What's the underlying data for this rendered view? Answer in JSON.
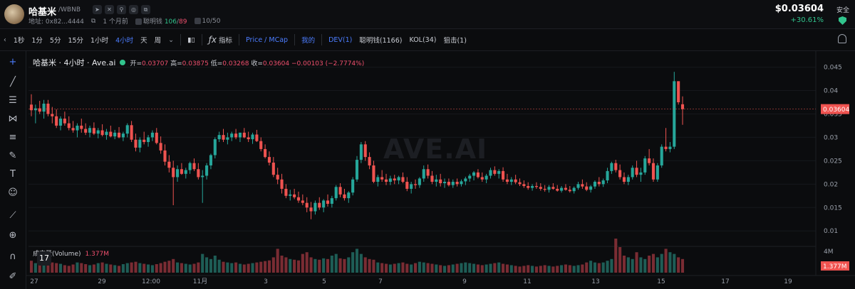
{
  "header": {
    "token_name": "哈基米",
    "pair": "/WBNB",
    "address": "地址: 0x82...4444",
    "age": "1 个月前",
    "smart_money_label": "聪明钱",
    "smart_money_in": "106",
    "smart_money_out": "89",
    "holders": "10/50",
    "price": "$0.03604",
    "change": "+30.61%",
    "safety": "安全"
  },
  "toolbar": {
    "intervals": [
      "1秒",
      "1分",
      "5分",
      "15分",
      "1小时",
      "4小时",
      "天",
      "周"
    ],
    "active_interval": "4小时",
    "indicator_label": "指标",
    "price_mcap": "Price / MCap",
    "mine": "我的",
    "dev": "DEV(1)",
    "smart": "聪明钱(1166)",
    "kol": "KOL(34)",
    "snipe": "狙击(1)"
  },
  "legend": {
    "symbol": "哈基米 · 4小时 · Ave.ai",
    "open_label": "开=",
    "open": "0.03707",
    "high_label": "高=",
    "high": "0.03875",
    "low_label": "低=",
    "low": "0.03268",
    "close_label": "收=",
    "close": "0.03604",
    "change": "−0.00103 (−2.7774%)",
    "volume_label": "成交量(Volume)",
    "volume_value": "1.377M"
  },
  "watermark": "AVE.AI",
  "chart_data": {
    "type": "candlestick",
    "title": "哈基米 · 4小时 · Ave.ai",
    "ylim": [
      0.007,
      0.046
    ],
    "y_ticks": [
      0.045,
      0.04,
      0.035,
      0.03,
      0.025,
      0.02,
      0.015,
      0.01
    ],
    "x_ticks": [
      "27",
      "29",
      "12:00",
      "11月",
      "3",
      "5",
      "7",
      "9",
      "11",
      "13",
      "15",
      "17",
      "19"
    ],
    "current_price": 0.03604,
    "volume_ticks": [
      "4M"
    ],
    "volume_current": "1.377M",
    "up_color": "#26a69a",
    "down_color": "#ef5350",
    "candles": [
      [
        0.037,
        0.0392,
        0.0345,
        0.0358
      ],
      [
        0.0358,
        0.037,
        0.033,
        0.0362
      ],
      [
        0.0362,
        0.0378,
        0.035,
        0.0355
      ],
      [
        0.0355,
        0.038,
        0.034,
        0.0372
      ],
      [
        0.0372,
        0.038,
        0.0345,
        0.035
      ],
      [
        0.035,
        0.0365,
        0.033,
        0.0345
      ],
      [
        0.0345,
        0.036,
        0.032,
        0.0325
      ],
      [
        0.0325,
        0.0345,
        0.0315,
        0.034
      ],
      [
        0.034,
        0.0355,
        0.0325,
        0.033
      ],
      [
        0.033,
        0.0345,
        0.0315,
        0.032
      ],
      [
        0.032,
        0.0335,
        0.031,
        0.0315
      ],
      [
        0.0315,
        0.033,
        0.03,
        0.0325
      ],
      [
        0.0325,
        0.034,
        0.031,
        0.0318
      ],
      [
        0.0318,
        0.033,
        0.0305,
        0.031
      ],
      [
        0.031,
        0.0325,
        0.03,
        0.032
      ],
      [
        0.032,
        0.0332,
        0.0305,
        0.0308
      ],
      [
        0.0308,
        0.032,
        0.0298,
        0.0315
      ],
      [
        0.0315,
        0.0328,
        0.0302,
        0.0305
      ],
      [
        0.0305,
        0.0318,
        0.0295,
        0.0312
      ],
      [
        0.0312,
        0.0325,
        0.03,
        0.0302
      ],
      [
        0.0302,
        0.0316,
        0.0296,
        0.031
      ],
      [
        0.031,
        0.0322,
        0.0298,
        0.03
      ],
      [
        0.03,
        0.0312,
        0.0292,
        0.0308
      ],
      [
        0.0308,
        0.033,
        0.03,
        0.0326
      ],
      [
        0.0326,
        0.0335,
        0.029,
        0.0295
      ],
      [
        0.0295,
        0.0308,
        0.027,
        0.0278
      ],
      [
        0.0278,
        0.03,
        0.0268,
        0.0295
      ],
      [
        0.0295,
        0.0312,
        0.0285,
        0.029
      ],
      [
        0.029,
        0.0305,
        0.028,
        0.03
      ],
      [
        0.03,
        0.0315,
        0.0292,
        0.031
      ],
      [
        0.031,
        0.032,
        0.0285,
        0.0288
      ],
      [
        0.0288,
        0.0302,
        0.0265,
        0.0272
      ],
      [
        0.0272,
        0.0285,
        0.024,
        0.0248
      ],
      [
        0.0248,
        0.0262,
        0.0225,
        0.0235
      ],
      [
        0.0235,
        0.025,
        0.0155,
        0.0215
      ],
      [
        0.0215,
        0.024,
        0.0205,
        0.0232
      ],
      [
        0.0232,
        0.0245,
        0.022,
        0.0222
      ],
      [
        0.0222,
        0.0235,
        0.0212,
        0.023
      ],
      [
        0.023,
        0.0248,
        0.0222,
        0.0245
      ],
      [
        0.0245,
        0.0255,
        0.0228,
        0.0232
      ],
      [
        0.0232,
        0.0245,
        0.021,
        0.0215
      ],
      [
        0.0215,
        0.023,
        0.016,
        0.0218
      ],
      [
        0.0218,
        0.0245,
        0.021,
        0.024
      ],
      [
        0.024,
        0.0265,
        0.0232,
        0.0262
      ],
      [
        0.0262,
        0.03,
        0.0255,
        0.0296
      ],
      [
        0.0296,
        0.0312,
        0.029,
        0.0305
      ],
      [
        0.0305,
        0.0318,
        0.029,
        0.0295
      ],
      [
        0.0295,
        0.031,
        0.0285,
        0.03
      ],
      [
        0.03,
        0.0312,
        0.0292,
        0.0308
      ],
      [
        0.0308,
        0.0318,
        0.0296,
        0.03
      ],
      [
        0.03,
        0.031,
        0.029,
        0.031
      ],
      [
        0.031,
        0.032,
        0.0298,
        0.03
      ],
      [
        0.03,
        0.0312,
        0.029,
        0.0296
      ],
      [
        0.0296,
        0.031,
        0.0286,
        0.0306
      ],
      [
        0.0306,
        0.0316,
        0.029,
        0.0292
      ],
      [
        0.0292,
        0.03,
        0.027,
        0.0275
      ],
      [
        0.0275,
        0.0285,
        0.0255,
        0.0258
      ],
      [
        0.0258,
        0.027,
        0.024,
        0.0246
      ],
      [
        0.0246,
        0.0258,
        0.0215,
        0.022
      ],
      [
        0.022,
        0.0235,
        0.02,
        0.021
      ],
      [
        0.021,
        0.0222,
        0.018,
        0.019
      ],
      [
        0.019,
        0.02,
        0.017,
        0.0175
      ],
      [
        0.0175,
        0.0188,
        0.0165,
        0.0178
      ],
      [
        0.0178,
        0.019,
        0.0168,
        0.0172
      ],
      [
        0.0172,
        0.0184,
        0.016,
        0.0165
      ],
      [
        0.0165,
        0.0178,
        0.0155,
        0.016
      ],
      [
        0.016,
        0.0172,
        0.014,
        0.015
      ],
      [
        0.015,
        0.0162,
        0.0125,
        0.0142
      ],
      [
        0.0142,
        0.0165,
        0.0135,
        0.016
      ],
      [
        0.016,
        0.0172,
        0.0145,
        0.015
      ],
      [
        0.015,
        0.0168,
        0.014,
        0.0165
      ],
      [
        0.0165,
        0.0178,
        0.0152,
        0.0158
      ],
      [
        0.0158,
        0.0175,
        0.015,
        0.017
      ],
      [
        0.017,
        0.0198,
        0.0165,
        0.0194
      ],
      [
        0.0194,
        0.0202,
        0.0172,
        0.0178
      ],
      [
        0.0178,
        0.019,
        0.0165,
        0.017
      ],
      [
        0.017,
        0.0185,
        0.016,
        0.0182
      ],
      [
        0.0182,
        0.0215,
        0.0176,
        0.021
      ],
      [
        0.021,
        0.026,
        0.0205,
        0.0252
      ],
      [
        0.0252,
        0.029,
        0.0245,
        0.0285
      ],
      [
        0.0285,
        0.0292,
        0.025,
        0.0258
      ],
      [
        0.0258,
        0.0268,
        0.0232,
        0.024
      ],
      [
        0.024,
        0.025,
        0.0202,
        0.0205
      ],
      [
        0.0205,
        0.022,
        0.0195,
        0.0215
      ],
      [
        0.0215,
        0.023,
        0.0205,
        0.021
      ],
      [
        0.021,
        0.0222,
        0.0198,
        0.0205
      ],
      [
        0.0205,
        0.0218,
        0.0198,
        0.0212
      ],
      [
        0.0212,
        0.022,
        0.02,
        0.0208
      ],
      [
        0.0208,
        0.0218,
        0.02,
        0.0215
      ],
      [
        0.0215,
        0.0225,
        0.0202,
        0.0205
      ],
      [
        0.0205,
        0.0215,
        0.0185,
        0.019
      ],
      [
        0.019,
        0.0205,
        0.018,
        0.02
      ],
      [
        0.02,
        0.021,
        0.019,
        0.0198
      ],
      [
        0.0198,
        0.0215,
        0.0192,
        0.0212
      ],
      [
        0.0212,
        0.024,
        0.0205,
        0.0232
      ],
      [
        0.0232,
        0.0242,
        0.0212,
        0.0218
      ],
      [
        0.0218,
        0.0228,
        0.02,
        0.0205
      ],
      [
        0.0205,
        0.022,
        0.0195,
        0.021
      ],
      [
        0.021,
        0.0222,
        0.0195,
        0.0202
      ],
      [
        0.0202,
        0.0212,
        0.0192,
        0.0205
      ],
      [
        0.0205,
        0.0212,
        0.0195,
        0.0198
      ],
      [
        0.0198,
        0.021,
        0.0192,
        0.0205
      ],
      [
        0.0205,
        0.0212,
        0.0195,
        0.02
      ],
      [
        0.02,
        0.021,
        0.0195,
        0.0206
      ],
      [
        0.0206,
        0.0216,
        0.0198,
        0.0212
      ],
      [
        0.0212,
        0.0222,
        0.0205,
        0.0218
      ],
      [
        0.0218,
        0.0228,
        0.0208,
        0.0225
      ],
      [
        0.0225,
        0.0232,
        0.0212,
        0.0215
      ],
      [
        0.0215,
        0.0225,
        0.0205,
        0.021
      ],
      [
        0.021,
        0.0222,
        0.0202,
        0.0218
      ],
      [
        0.0218,
        0.0235,
        0.0212,
        0.023
      ],
      [
        0.023,
        0.0238,
        0.0218,
        0.0222
      ],
      [
        0.0222,
        0.0232,
        0.0212,
        0.0228
      ],
      [
        0.0228,
        0.0236,
        0.0205,
        0.021
      ],
      [
        0.021,
        0.0222,
        0.02,
        0.0205
      ],
      [
        0.0205,
        0.0215,
        0.0198,
        0.021
      ],
      [
        0.021,
        0.022,
        0.02,
        0.0204
      ],
      [
        0.0204,
        0.0212,
        0.0196,
        0.02
      ],
      [
        0.02,
        0.0208,
        0.0192,
        0.0196
      ],
      [
        0.0196,
        0.0204,
        0.0188,
        0.0192
      ],
      [
        0.0192,
        0.02,
        0.0186,
        0.0196
      ],
      [
        0.0196,
        0.0204,
        0.019,
        0.0194
      ],
      [
        0.0194,
        0.0202,
        0.0186,
        0.019
      ],
      [
        0.019,
        0.0198,
        0.0184,
        0.0188
      ],
      [
        0.0188,
        0.0198,
        0.0182,
        0.0194
      ],
      [
        0.0194,
        0.0202,
        0.0188,
        0.019
      ],
      [
        0.019,
        0.0198,
        0.0184,
        0.0186
      ],
      [
        0.0186,
        0.0196,
        0.0182,
        0.0192
      ],
      [
        0.0192,
        0.02,
        0.0186,
        0.0188
      ],
      [
        0.0188,
        0.0196,
        0.0182,
        0.0185
      ],
      [
        0.0185,
        0.0195,
        0.018,
        0.0192
      ],
      [
        0.0192,
        0.0205,
        0.0188,
        0.02
      ],
      [
        0.02,
        0.021,
        0.019,
        0.0195
      ],
      [
        0.0195,
        0.0204,
        0.0185,
        0.0188
      ],
      [
        0.0188,
        0.0198,
        0.0182,
        0.0195
      ],
      [
        0.0195,
        0.0208,
        0.019,
        0.0205
      ],
      [
        0.0205,
        0.0215,
        0.0195,
        0.02
      ],
      [
        0.02,
        0.0212,
        0.0194,
        0.0208
      ],
      [
        0.0208,
        0.0235,
        0.0202,
        0.0228
      ],
      [
        0.0228,
        0.0248,
        0.0222,
        0.0245
      ],
      [
        0.0245,
        0.0252,
        0.0225,
        0.023
      ],
      [
        0.023,
        0.0242,
        0.021,
        0.0215
      ],
      [
        0.0215,
        0.0225,
        0.02,
        0.0205
      ],
      [
        0.0205,
        0.022,
        0.0198,
        0.0215
      ],
      [
        0.0215,
        0.024,
        0.021,
        0.0235
      ],
      [
        0.0235,
        0.025,
        0.0215,
        0.022
      ],
      [
        0.022,
        0.0235,
        0.0205,
        0.0225
      ],
      [
        0.0225,
        0.026,
        0.022,
        0.0255
      ],
      [
        0.0255,
        0.0275,
        0.024,
        0.0245
      ],
      [
        0.0245,
        0.0255,
        0.0205,
        0.021
      ],
      [
        0.021,
        0.0245,
        0.0205,
        0.024
      ],
      [
        0.024,
        0.0285,
        0.0235,
        0.028
      ],
      [
        0.028,
        0.032,
        0.027,
        0.0275
      ],
      [
        0.0275,
        0.029,
        0.0268,
        0.028
      ],
      [
        0.028,
        0.044,
        0.0275,
        0.042
      ],
      [
        0.042,
        0.042,
        0.037,
        0.0375
      ],
      [
        0.03707,
        0.03875,
        0.03268,
        0.03604
      ]
    ],
    "volumes": [
      0.35,
      0.28,
      0.3,
      0.22,
      0.25,
      0.3,
      0.28,
      0.26,
      0.22,
      0.2,
      0.24,
      0.3,
      0.28,
      0.25,
      0.22,
      0.24,
      0.28,
      0.3,
      0.26,
      0.24,
      0.22,
      0.2,
      0.25,
      0.28,
      0.3,
      0.32,
      0.28,
      0.26,
      0.24,
      0.22,
      0.25,
      0.28,
      0.32,
      0.35,
      0.4,
      0.3,
      0.28,
      0.26,
      0.24,
      0.26,
      0.3,
      0.55,
      0.45,
      0.4,
      0.5,
      0.38,
      0.32,
      0.3,
      0.28,
      0.3,
      0.26,
      0.24,
      0.26,
      0.28,
      0.3,
      0.32,
      0.34,
      0.36,
      0.45,
      0.7,
      0.5,
      0.45,
      0.4,
      0.38,
      0.36,
      0.55,
      0.6,
      0.45,
      0.4,
      0.38,
      0.42,
      0.4,
      0.5,
      0.55,
      0.42,
      0.4,
      0.45,
      0.6,
      0.7,
      0.55,
      0.45,
      0.4,
      0.38,
      0.3,
      0.28,
      0.26,
      0.24,
      0.26,
      0.28,
      0.3,
      0.26,
      0.24,
      0.28,
      0.32,
      0.3,
      0.28,
      0.26,
      0.24,
      0.22,
      0.2,
      0.22,
      0.24,
      0.26,
      0.28,
      0.3,
      0.28,
      0.26,
      0.24,
      0.22,
      0.24,
      0.26,
      0.28,
      0.3,
      0.26,
      0.24,
      0.22,
      0.2,
      0.18,
      0.2,
      0.22,
      0.2,
      0.18,
      0.2,
      0.22,
      0.2,
      0.18,
      0.2,
      0.22,
      0.24,
      0.22,
      0.2,
      0.22,
      0.24,
      0.3,
      0.35,
      0.3,
      0.28,
      0.3,
      0.35,
      0.4,
      1.0,
      0.75,
      0.5,
      0.45,
      0.4,
      0.6,
      0.45,
      0.4,
      0.5,
      0.55,
      0.45,
      0.55,
      0.7,
      0.6,
      0.55,
      0.45,
      0.4
    ]
  }
}
